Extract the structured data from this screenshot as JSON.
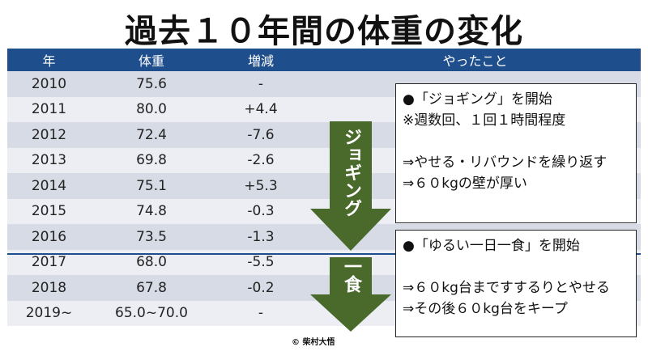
{
  "title": "過去１０年間の体重の変化",
  "headers": [
    "年",
    "体重",
    "増減",
    "やったこと"
  ],
  "rows": [
    {
      "year": "2010",
      "weight": "75.6",
      "delta": "-"
    },
    {
      "year": "2011",
      "weight": "80.0",
      "delta": "+4.4"
    },
    {
      "year": "2012",
      "weight": "72.4",
      "delta": "-7.6"
    },
    {
      "year": "2013",
      "weight": "69.8",
      "delta": "-2.6"
    },
    {
      "year": "2014",
      "weight": "75.1",
      "delta": "+5.3"
    },
    {
      "year": "2015",
      "weight": "74.8",
      "delta": "-0.3"
    },
    {
      "year": "2016",
      "weight": "73.5",
      "delta": "-1.3"
    },
    {
      "year": "2017",
      "weight": "68.0",
      "delta": "-5.5"
    },
    {
      "year": "2018",
      "weight": "67.8",
      "delta": "-0.2"
    },
    {
      "year": "2019~",
      "weight": "65.0~70.0",
      "delta": "-"
    }
  ],
  "arrows": {
    "jogging": "ジョギング",
    "one_meal": "一食"
  },
  "box1": {
    "line1": "●「ジョギング」を開始",
    "line2": "※週数回、１回１時間程度",
    "line3": "⇒やせる・リバウンドを繰り返す",
    "line4": "⇒６０kgの壁が厚い"
  },
  "box2": {
    "line1": "●「ゆるい一日一食」を開始",
    "line2": "⇒６０kg台まですするりとやせる",
    "line3": "⇒その後６０kg台をキープ"
  },
  "copyright": "© 柴村大悟",
  "colors": {
    "header": "#1f4e8c",
    "arrow": "#4a6a2c",
    "row_even": "#d7dbe6",
    "row_odd": "#eceef4"
  }
}
